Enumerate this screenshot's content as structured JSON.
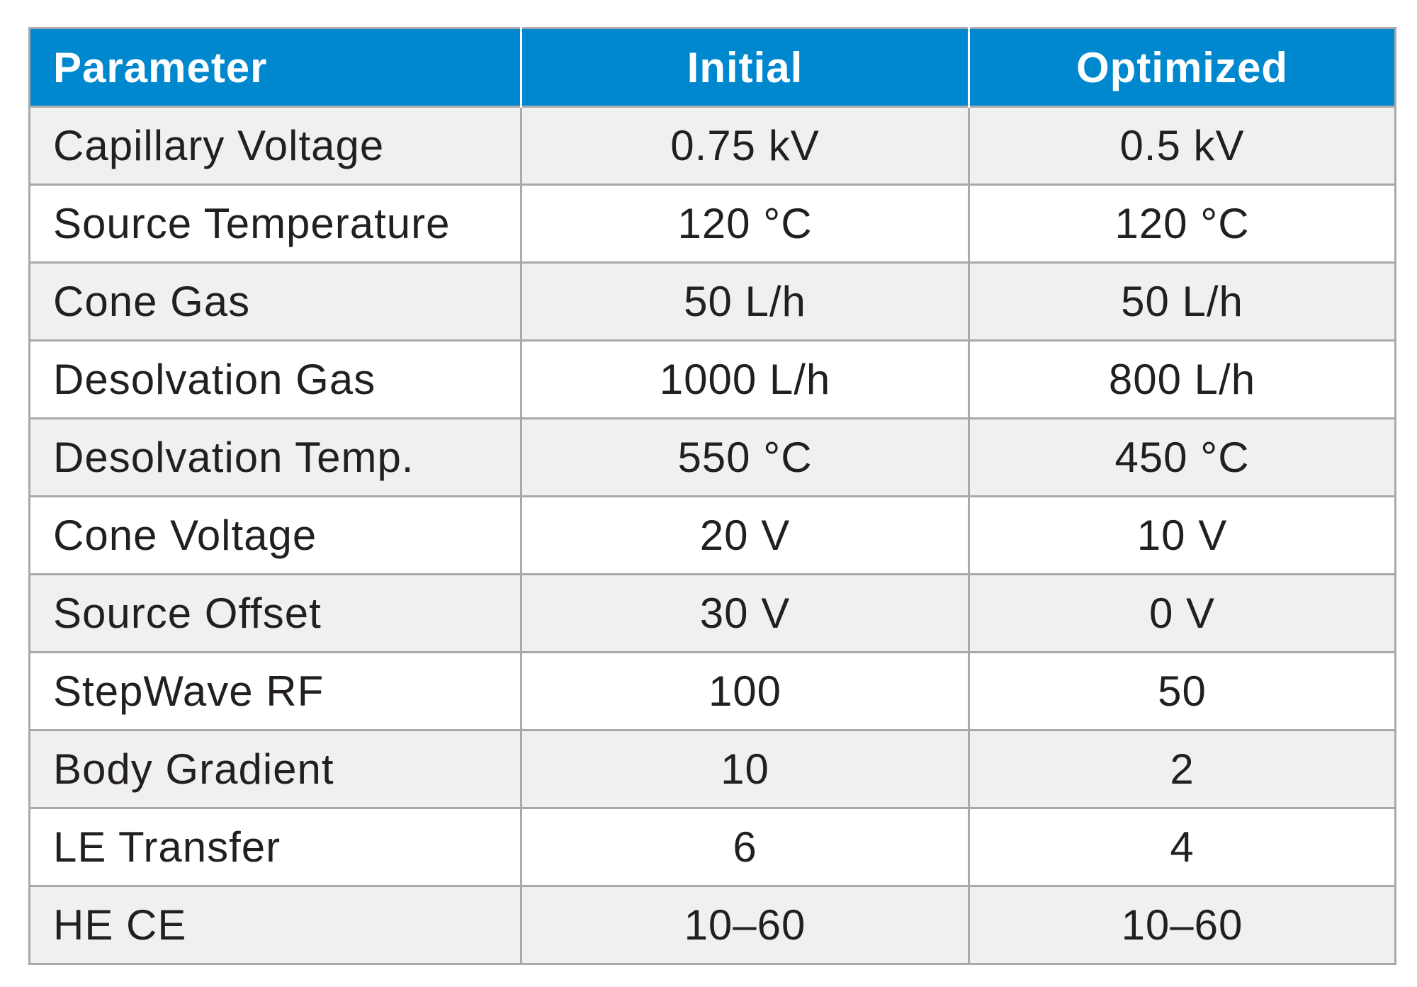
{
  "table": {
    "headers": [
      "Parameter",
      "Initial",
      "Optimized"
    ],
    "rows": [
      [
        "Capillary Voltage",
        "0.75 kV",
        "0.5 kV"
      ],
      [
        "Source Temperature",
        "120 °C",
        "120 °C"
      ],
      [
        "Cone Gas",
        "50 L/h",
        "50 L/h"
      ],
      [
        "Desolvation Gas",
        "1000 L/h",
        "800 L/h"
      ],
      [
        "Desolvation Temp.",
        "550 °C",
        "450 °C"
      ],
      [
        "Cone Voltage",
        "20 V",
        "10 V"
      ],
      [
        "Source Offset",
        "30 V",
        "0 V"
      ],
      [
        "StepWave RF",
        "100",
        "50"
      ],
      [
        "Body Gradient",
        "10",
        "2"
      ],
      [
        "LE Transfer",
        "6",
        "4"
      ],
      [
        "HE CE",
        "10–60",
        "10–60"
      ]
    ],
    "colors": {
      "header_bg": "#0088cf",
      "header_text": "#ffffff",
      "row_alt_bg": "#f0f0f1",
      "border": "#a7a9ac",
      "text": "#231f20"
    }
  }
}
